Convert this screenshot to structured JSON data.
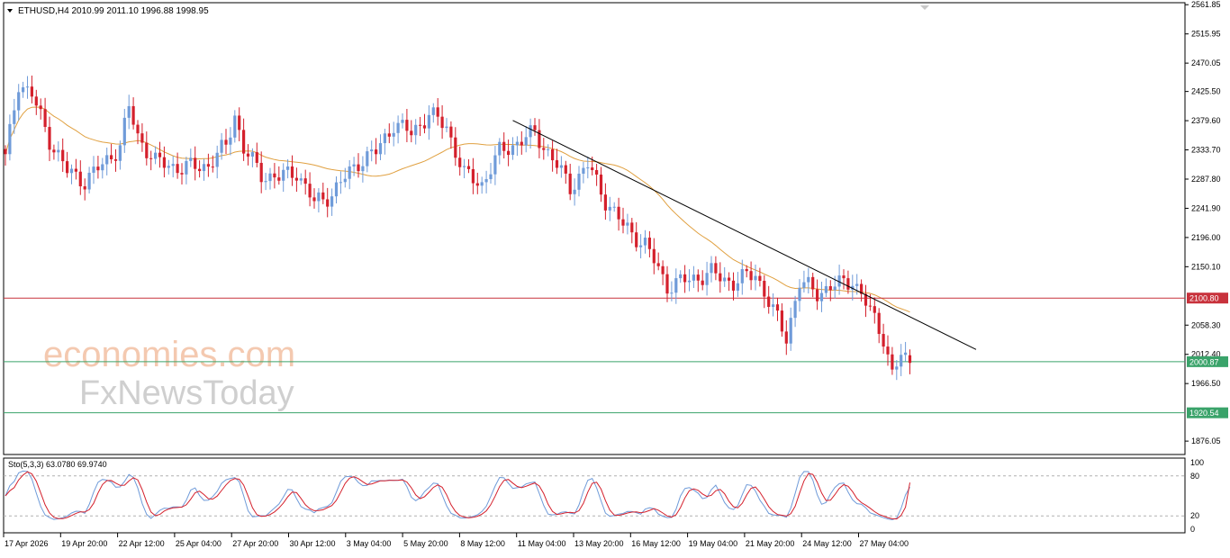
{
  "colors": {
    "bull": "#6f9bd9",
    "bear": "#d4202c",
    "ma": "#e0a040",
    "trendline": "#000000",
    "resistance": "#c8323c",
    "support": "#3aa36a",
    "stoch_main": "#6f9bd9",
    "stoch_signal": "#d4202c",
    "price_box_red": "#c8323c",
    "price_box_green": "#3aa36a"
  },
  "header": {
    "symbol_line": "ETHUSD,H4  2010.99 2011.10 1996.88 1998.95"
  },
  "watermark": {
    "brand1": "economies.com",
    "brand2": "FxNewsToday"
  },
  "chart_data": {
    "type": "candlestick",
    "symbol": "ETHUSD",
    "timeframe": "H4",
    "ohlc_header": {
      "open": 2010.99,
      "high": 2011.1,
      "low": 1996.88,
      "close": 1998.95
    },
    "y_ticks": [
      "2561.85",
      "2515.95",
      "2470.05",
      "2425.50",
      "2379.60",
      "2333.70",
      "2287.80",
      "2241.90",
      "2196.00",
      "2150.10",
      "2058.30",
      "2012.40",
      "1966.50",
      "1876.05"
    ],
    "ylim": [
      1855,
      2565
    ],
    "x_ticks": [
      "17 Apr 2026",
      "19 Apr 20:00",
      "22 Apr 12:00",
      "25 Apr 04:00",
      "27 Apr 20:00",
      "30 Apr 12:00",
      "3 May 04:00",
      "5 May 20:00",
      "8 May 12:00",
      "11 May 04:00",
      "13 May 20:00",
      "16 May 12:00",
      "19 May 04:00",
      "21 May 20:00",
      "24 May 12:00",
      "27 May 04:00"
    ],
    "levels": [
      {
        "name": "resistance",
        "value": 2100.8,
        "label": "2100.80"
      },
      {
        "name": "support-1",
        "value": 2000.87,
        "label": "2000.87"
      },
      {
        "name": "support-2",
        "value": 1920.54,
        "label": "1920.54"
      }
    ],
    "trendline": {
      "from_bar": 115,
      "from_price": 2380,
      "to_bar": 220,
      "to_price": 2020
    },
    "moving_average_shown": true,
    "close_path": [
      [
        0,
        2320
      ],
      [
        3,
        2440
      ],
      [
        6,
        2420
      ],
      [
        10,
        2350
      ],
      [
        14,
        2300
      ],
      [
        18,
        2285
      ],
      [
        22,
        2310
      ],
      [
        26,
        2340
      ],
      [
        28,
        2400
      ],
      [
        30,
        2355
      ],
      [
        34,
        2315
      ],
      [
        40,
        2305
      ],
      [
        46,
        2310
      ],
      [
        50,
        2340
      ],
      [
        52,
        2390
      ],
      [
        54,
        2335
      ],
      [
        58,
        2295
      ],
      [
        62,
        2290
      ],
      [
        66,
        2300
      ],
      [
        70,
        2250
      ],
      [
        74,
        2265
      ],
      [
        80,
        2315
      ],
      [
        84,
        2330
      ],
      [
        88,
        2375
      ],
      [
        92,
        2360
      ],
      [
        96,
        2390
      ],
      [
        100,
        2370
      ],
      [
        104,
        2295
      ],
      [
        108,
        2280
      ],
      [
        112,
        2330
      ],
      [
        116,
        2345
      ],
      [
        120,
        2360
      ],
      [
        124,
        2320
      ],
      [
        128,
        2275
      ],
      [
        132,
        2310
      ],
      [
        136,
        2255
      ],
      [
        140,
        2215
      ],
      [
        145,
        2185
      ],
      [
        150,
        2120
      ],
      [
        155,
        2130
      ],
      [
        160,
        2140
      ],
      [
        165,
        2125
      ],
      [
        170,
        2140
      ],
      [
        174,
        2080
      ],
      [
        177,
        2040
      ],
      [
        180,
        2125
      ],
      [
        184,
        2110
      ],
      [
        188,
        2120
      ],
      [
        192,
        2130
      ],
      [
        196,
        2080
      ],
      [
        199,
        2040
      ],
      [
        201,
        1980
      ],
      [
        203,
        2010
      ],
      [
        205,
        1998.95
      ]
    ],
    "stochastic": {
      "label": "Sto(5,3,3) 63.0780 69.9740",
      "params": [
        5,
        3,
        3
      ],
      "main": 63.078,
      "signal": 69.974,
      "levels": [
        80,
        20
      ],
      "ylim": [
        0,
        100
      ],
      "y_ticks": [
        "100",
        "80",
        "20",
        "0"
      ]
    }
  }
}
